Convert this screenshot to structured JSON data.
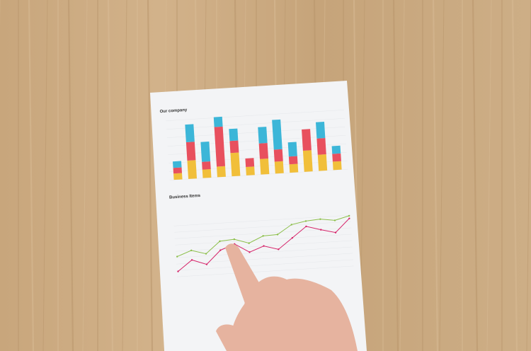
{
  "colors": {
    "wood": "#c9a77e",
    "paper": "#f4f5f7",
    "yellow": "#f1bf3a",
    "red": "#e8505e",
    "blue": "#3cb6d8",
    "line_red": "#d6246a",
    "line_green": "#8cbf4a",
    "skin": "#e9b7a3"
  },
  "paper": {
    "bar_chart": {
      "title": "Our company",
      "type": "bar-stacked",
      "values": [
        [
          9,
          8,
          9
        ],
        [
          26,
          26,
          25
        ],
        [
          12,
          11,
          28
        ],
        [
          15,
          56,
          14
        ],
        [
          33,
          17,
          17
        ],
        [
          12,
          12,
          0
        ],
        [
          22,
          22,
          23
        ],
        [
          17,
          17,
          42
        ],
        [
          12,
          11,
          20
        ],
        [
          30,
          30,
          0
        ],
        [
          23,
          23,
          23
        ],
        [
          12,
          11,
          11
        ]
      ]
    },
    "line_chart": {
      "title": "Business Items",
      "type": "line",
      "series": [
        {
          "color": "#d6246a",
          "values": [
            10,
            30,
            20,
            45,
            55,
            38,
            48,
            40,
            60,
            80,
            72,
            65,
            90
          ]
        },
        {
          "color": "#8cbf4a",
          "values": [
            38,
            48,
            40,
            62,
            64,
            55,
            67,
            68,
            85,
            90,
            92,
            88,
            95
          ]
        }
      ]
    }
  }
}
